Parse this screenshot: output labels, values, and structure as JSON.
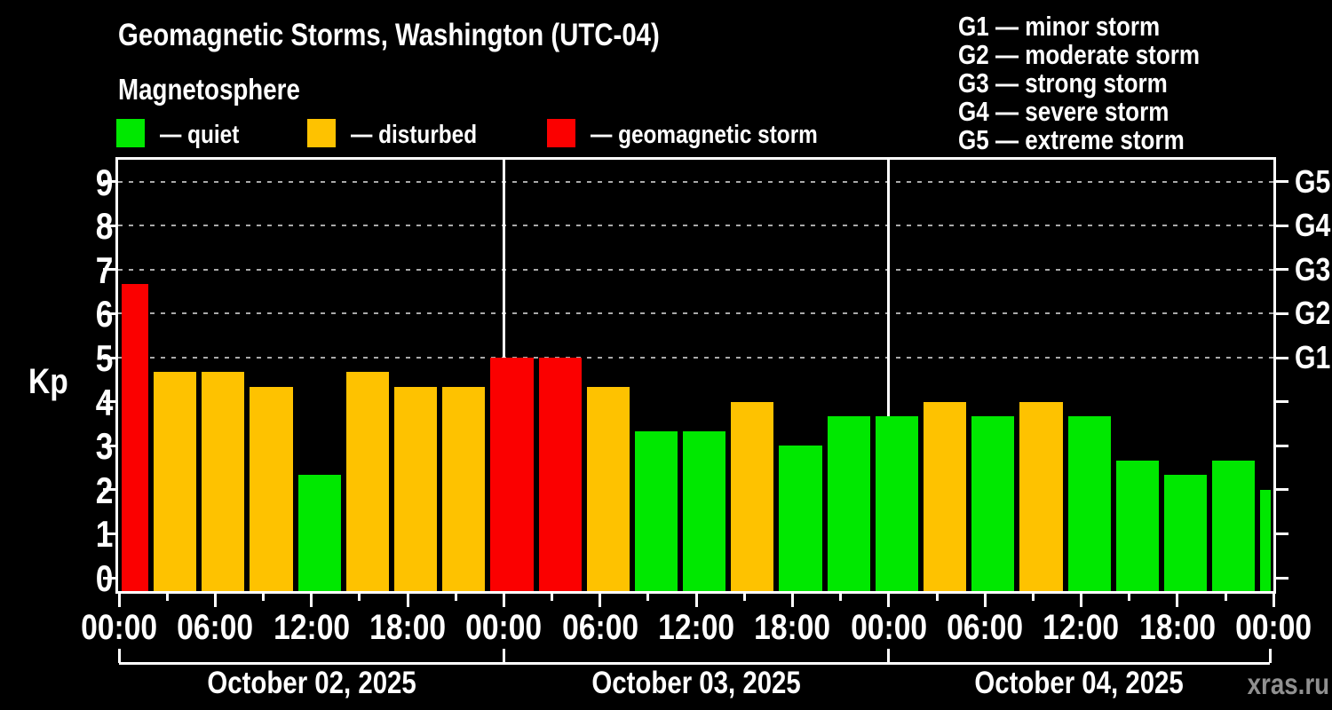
{
  "header": {
    "title": "Geomagnetic Storms, Washington (UTC-04)",
    "subtitle": "Magnetosphere"
  },
  "legend": [
    {
      "label": "— quiet",
      "status": "quiet"
    },
    {
      "label": "— disturbed",
      "status": "disturbed"
    },
    {
      "label": "— geomagnetic storm",
      "status": "storm"
    }
  ],
  "g_scale_legend": [
    "G1 — minor storm",
    "G2 — moderate storm",
    "G3 — strong storm",
    "G4 — severe storm",
    "G5 — extreme storm"
  ],
  "watermark": "xras.ru",
  "chart_data": {
    "type": "bar",
    "title": "Geomagnetic Storms, Washington (UTC-04)",
    "ylabel": "Kp",
    "ylim": [
      0,
      9.5
    ],
    "y_ticks": [
      0,
      1,
      2,
      3,
      4,
      5,
      6,
      7,
      8,
      9
    ],
    "gridlines_dashed_at": [
      5,
      6,
      7,
      8,
      9
    ],
    "grid": "dashed horizontal at Kp 5-9 only",
    "right_axis_labels": [
      {
        "kp": 5,
        "label": "G1"
      },
      {
        "kp": 6,
        "label": "G2"
      },
      {
        "kp": 7,
        "label": "G3"
      },
      {
        "kp": 8,
        "label": "G4"
      },
      {
        "kp": 9,
        "label": "G5"
      }
    ],
    "x_hours_total": 72,
    "x_major_tick_every_h": 6,
    "x_minor_tick_every_h": 3,
    "x_tick_labels": [
      "00:00",
      "06:00",
      "12:00",
      "18:00",
      "00:00",
      "06:00",
      "12:00",
      "18:00",
      "00:00",
      "06:00",
      "12:00",
      "18:00",
      "00:00"
    ],
    "day_boundaries_h": [
      24,
      48
    ],
    "days": [
      "October 02, 2025",
      "October 03, 2025",
      "October 04, 2025"
    ],
    "colors": {
      "quiet": "#00e800",
      "disturbed": "#fec200",
      "storm": "#fb0000"
    },
    "bars": [
      {
        "start_h": 0,
        "end_h": 2,
        "kp": 6.67,
        "status": "storm"
      },
      {
        "start_h": 2,
        "end_h": 5,
        "kp": 4.67,
        "status": "disturbed"
      },
      {
        "start_h": 5,
        "end_h": 8,
        "kp": 4.67,
        "status": "disturbed"
      },
      {
        "start_h": 8,
        "end_h": 11,
        "kp": 4.33,
        "status": "disturbed"
      },
      {
        "start_h": 11,
        "end_h": 14,
        "kp": 2.33,
        "status": "quiet"
      },
      {
        "start_h": 14,
        "end_h": 17,
        "kp": 4.67,
        "status": "disturbed"
      },
      {
        "start_h": 17,
        "end_h": 20,
        "kp": 4.33,
        "status": "disturbed"
      },
      {
        "start_h": 20,
        "end_h": 23,
        "kp": 4.33,
        "status": "disturbed"
      },
      {
        "start_h": 23,
        "end_h": 26,
        "kp": 5.0,
        "status": "storm"
      },
      {
        "start_h": 26,
        "end_h": 29,
        "kp": 5.0,
        "status": "storm"
      },
      {
        "start_h": 29,
        "end_h": 32,
        "kp": 4.33,
        "status": "disturbed"
      },
      {
        "start_h": 32,
        "end_h": 35,
        "kp": 3.33,
        "status": "quiet"
      },
      {
        "start_h": 35,
        "end_h": 38,
        "kp": 3.33,
        "status": "quiet"
      },
      {
        "start_h": 38,
        "end_h": 41,
        "kp": 4.0,
        "status": "disturbed"
      },
      {
        "start_h": 41,
        "end_h": 44,
        "kp": 3.0,
        "status": "quiet"
      },
      {
        "start_h": 44,
        "end_h": 47,
        "kp": 3.67,
        "status": "quiet"
      },
      {
        "start_h": 47,
        "end_h": 50,
        "kp": 3.67,
        "status": "quiet"
      },
      {
        "start_h": 50,
        "end_h": 53,
        "kp": 4.0,
        "status": "disturbed"
      },
      {
        "start_h": 53,
        "end_h": 56,
        "kp": 3.67,
        "status": "quiet"
      },
      {
        "start_h": 56,
        "end_h": 59,
        "kp": 4.0,
        "status": "disturbed"
      },
      {
        "start_h": 59,
        "end_h": 62,
        "kp": 3.67,
        "status": "quiet"
      },
      {
        "start_h": 62,
        "end_h": 65,
        "kp": 2.67,
        "status": "quiet"
      },
      {
        "start_h": 65,
        "end_h": 68,
        "kp": 2.33,
        "status": "quiet"
      },
      {
        "start_h": 68,
        "end_h": 71,
        "kp": 2.67,
        "status": "quiet"
      },
      {
        "start_h": 71,
        "end_h": 72,
        "kp": 2.0,
        "status": "quiet"
      }
    ]
  }
}
